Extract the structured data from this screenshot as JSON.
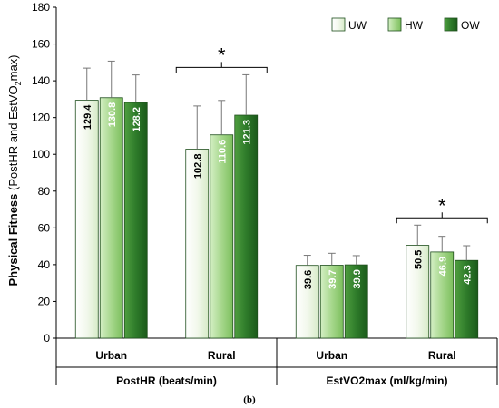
{
  "chart_data": {
    "type": "bar",
    "ylabel": "Physical Fitness (PostHR and EstVO2max)",
    "ylim": [
      0,
      180
    ],
    "yticks": [
      0,
      20,
      40,
      60,
      80,
      100,
      120,
      140,
      160,
      180
    ],
    "groups": [
      "PostHR (beats/min)",
      "EstVO2max (ml/kg/min)"
    ],
    "categories": [
      "Urban",
      "Rural",
      "Urban",
      "Rural"
    ],
    "series": [
      {
        "name": "UW",
        "values": [
          129.4,
          102.8,
          39.6,
          50.5
        ],
        "errors": [
          17.5,
          23.5,
          5.5,
          11.0
        ],
        "labels": [
          "129.4",
          "102.8",
          "39.6",
          "50.5"
        ],
        "color": "#f2f8ec",
        "label_color": "#000000"
      },
      {
        "name": "HW",
        "values": [
          130.8,
          110.6,
          39.7,
          46.9
        ],
        "errors": [
          19.9,
          18.7,
          6.5,
          8.5
        ],
        "labels": [
          "130.8",
          "110.6",
          "39.7",
          "46.9"
        ],
        "color": "#a6d78c",
        "label_color": "#ffffff"
      },
      {
        "name": "OW",
        "values": [
          128.2,
          121.3,
          39.9,
          42.3
        ],
        "errors": [
          15.0,
          22.0,
          5.0,
          8.0
        ],
        "labels": [
          "128.2",
          "121.3",
          "39.9",
          "42.3"
        ],
        "color": "#2e7b2a",
        "label_color": "#ffffff"
      }
    ],
    "significance": [
      "*",
      "*"
    ],
    "legend_position": "top-right",
    "grid": false
  },
  "caption": "(b)"
}
